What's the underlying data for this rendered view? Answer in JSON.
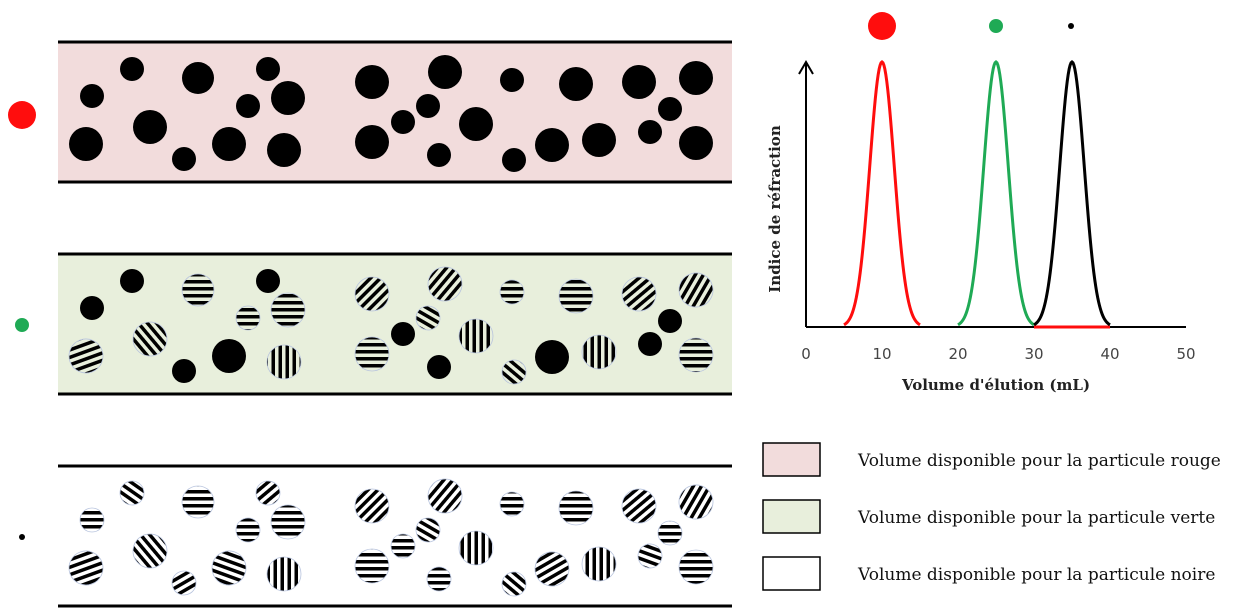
{
  "colors": {
    "red": "#ff0d0d",
    "green": "#1faa55",
    "black": "#000000",
    "red_bg": "#f2dcdc",
    "green_bg": "#e8efdc",
    "white_bg": "#ffffff"
  },
  "particles": [
    {
      "name": "rouge",
      "color": "#ff0d0d"
    },
    {
      "name": "verte",
      "color": "#1faa55"
    },
    {
      "name": "noire",
      "color": "#000000"
    }
  ],
  "chart_data": {
    "type": "line",
    "title": "",
    "xlabel": "Volume d'élution (mL)",
    "ylabel": "Indice de réfraction",
    "xlim": [
      0,
      50
    ],
    "xticks": [
      "0",
      "10",
      "20",
      "30",
      "40",
      "50"
    ],
    "series": [
      {
        "color": "#ff0d0d",
        "peak_x": 10,
        "range": [
          5,
          15
        ]
      },
      {
        "color": "#1faa55",
        "peak_x": 25,
        "range": [
          20,
          30
        ]
      },
      {
        "color": "#000000",
        "peak_x": 35,
        "range": [
          30,
          40
        ]
      }
    ],
    "baseline_highlight": {
      "color": "#ff0d0d",
      "range": [
        30,
        40
      ]
    }
  },
  "legend": [
    {
      "label": "Volume disponible pour la particule rouge",
      "fill": "#f2dcdc"
    },
    {
      "label": "Volume disponible pour la particule verte",
      "fill": "#e8efdc"
    },
    {
      "label": "Volume disponible pour la particule noire",
      "fill": "#ffffff"
    }
  ]
}
